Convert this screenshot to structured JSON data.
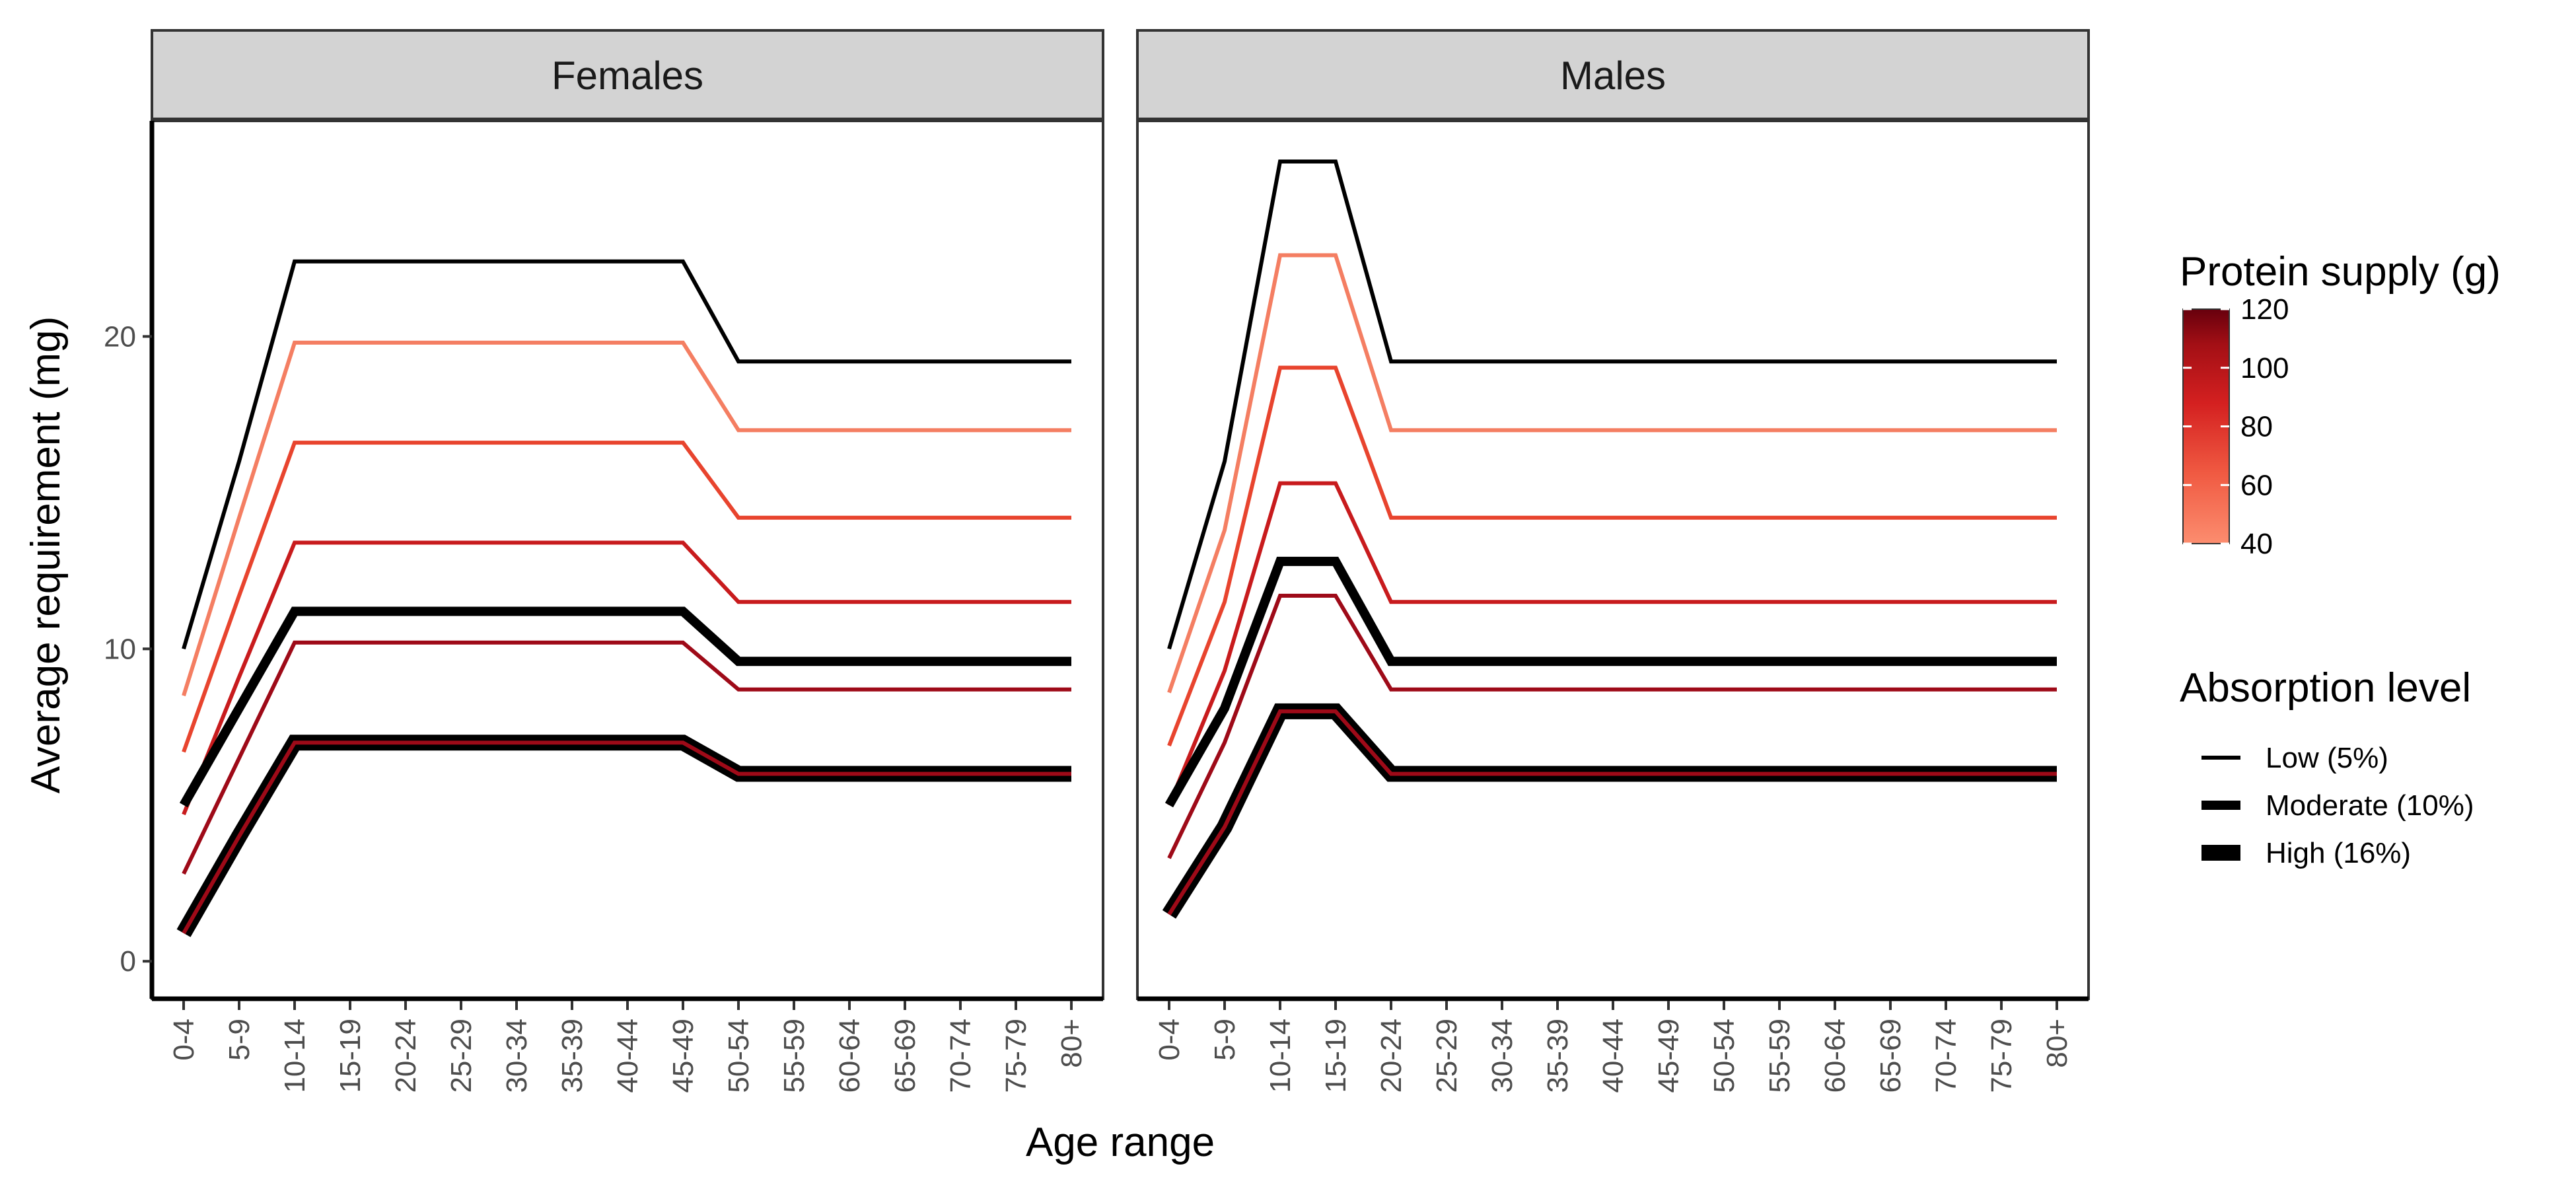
{
  "chart_data": {
    "type": "line",
    "xlabel": "Age range",
    "ylabel": "Average requirement (mg)",
    "categories": [
      "0-4",
      "5-9",
      "10-14",
      "15-19",
      "20-24",
      "25-29",
      "30-34",
      "35-39",
      "40-44",
      "45-49",
      "50-54",
      "55-59",
      "60-64",
      "65-69",
      "70-74",
      "75-79",
      "80+"
    ],
    "ylim": [
      -1.2,
      26.9
    ],
    "yticks": [
      0,
      10,
      20
    ],
    "grid": false,
    "legend_position": "right",
    "color_legend": {
      "title": "Protein supply (g)",
      "range": [
        40,
        120
      ],
      "ticks": [
        40,
        60,
        80,
        100,
        120
      ],
      "low_color": "#fc8d6f",
      "high_color": "#67000d"
    },
    "size_legend": {
      "title": "Absorption level",
      "entries": [
        {
          "label": "Low (5%)",
          "width": 6
        },
        {
          "label": "Moderate (10%)",
          "width": 14
        },
        {
          "label": "High (16%)",
          "width": 24
        }
      ]
    },
    "panels": [
      {
        "label": "Females",
        "series": [
          {
            "color": "#000000",
            "width": 6,
            "values": [
              10,
              16,
              22.4,
              22.4,
              22.4,
              22.4,
              22.4,
              22.4,
              22.4,
              22.4,
              19.2,
              19.2,
              19.2,
              19.2,
              19.2,
              19.2,
              19.2
            ]
          },
          {
            "color": "#f47e62",
            "width": 6,
            "values": [
              8.5,
              14.2,
              19.8,
              19.8,
              19.8,
              19.8,
              19.8,
              19.8,
              19.8,
              19.8,
              17.0,
              17.0,
              17.0,
              17.0,
              17.0,
              17.0,
              17.0
            ]
          },
          {
            "color": "#e8442e",
            "width": 6,
            "values": [
              6.7,
              11.7,
              16.6,
              16.6,
              16.6,
              16.6,
              16.6,
              16.6,
              16.6,
              16.6,
              14.2,
              14.2,
              14.2,
              14.2,
              14.2,
              14.2,
              14.2
            ]
          },
          {
            "color": "#c81b1d",
            "width": 6,
            "values": [
              4.7,
              9.1,
              13.4,
              13.4,
              13.4,
              13.4,
              13.4,
              13.4,
              13.4,
              13.4,
              11.5,
              11.5,
              11.5,
              11.5,
              11.5,
              11.5,
              11.5
            ]
          },
          {
            "color": "#000000",
            "width": 14,
            "values": [
              5.0,
              8.1,
              11.2,
              11.2,
              11.2,
              11.2,
              11.2,
              11.2,
              11.2,
              11.2,
              9.6,
              9.6,
              9.6,
              9.6,
              9.6,
              9.6,
              9.6
            ]
          },
          {
            "color": "#9e0a18",
            "width": 6,
            "values": [
              2.8,
              6.5,
              10.2,
              10.2,
              10.2,
              10.2,
              10.2,
              10.2,
              10.2,
              10.2,
              8.7,
              8.7,
              8.7,
              8.7,
              8.7,
              8.7,
              8.7
            ]
          },
          {
            "color": "#000000",
            "width": 24,
            "values": [
              0.9,
              4.0,
              7.0,
              7.0,
              7.0,
              7.0,
              7.0,
              7.0,
              7.0,
              7.0,
              6.0,
              6.0,
              6.0,
              6.0,
              6.0,
              6.0,
              6.0
            ]
          },
          {
            "color": "#9e0a18",
            "width": 6,
            "values": [
              0.9,
              4.0,
              7.0,
              7.0,
              7.0,
              7.0,
              7.0,
              7.0,
              7.0,
              7.0,
              6.0,
              6.0,
              6.0,
              6.0,
              6.0,
              6.0,
              6.0
            ]
          }
        ]
      },
      {
        "label": "Males",
        "series": [
          {
            "color": "#000000",
            "width": 6,
            "values": [
              10,
              16,
              25.6,
              25.6,
              19.2,
              19.2,
              19.2,
              19.2,
              19.2,
              19.2,
              19.2,
              19.2,
              19.2,
              19.2,
              19.2,
              19.2,
              19.2
            ]
          },
          {
            "color": "#f47e62",
            "width": 6,
            "values": [
              8.6,
              13.8,
              22.6,
              22.6,
              17.0,
              17.0,
              17.0,
              17.0,
              17.0,
              17.0,
              17.0,
              17.0,
              17.0,
              17.0,
              17.0,
              17.0,
              17.0
            ]
          },
          {
            "color": "#e8442e",
            "width": 6,
            "values": [
              6.9,
              11.5,
              19.0,
              19.0,
              14.2,
              14.2,
              14.2,
              14.2,
              14.2,
              14.2,
              14.2,
              14.2,
              14.2,
              14.2,
              14.2,
              14.2,
              14.2
            ]
          },
          {
            "color": "#c81b1d",
            "width": 6,
            "values": [
              5.0,
              9.3,
              15.3,
              15.3,
              11.5,
              11.5,
              11.5,
              11.5,
              11.5,
              11.5,
              11.5,
              11.5,
              11.5,
              11.5,
              11.5,
              11.5,
              11.5
            ]
          },
          {
            "color": "#000000",
            "width": 14,
            "values": [
              5.0,
              8.1,
              12.8,
              12.8,
              9.6,
              9.6,
              9.6,
              9.6,
              9.6,
              9.6,
              9.6,
              9.6,
              9.6,
              9.6,
              9.6,
              9.6,
              9.6
            ]
          },
          {
            "color": "#9e0a18",
            "width": 6,
            "values": [
              3.3,
              7.0,
              11.7,
              11.7,
              8.7,
              8.7,
              8.7,
              8.7,
              8.7,
              8.7,
              8.7,
              8.7,
              8.7,
              8.7,
              8.7,
              8.7,
              8.7
            ]
          },
          {
            "color": "#000000",
            "width": 24,
            "values": [
              1.5,
              4.3,
              8.0,
              8.0,
              6.0,
              6.0,
              6.0,
              6.0,
              6.0,
              6.0,
              6.0,
              6.0,
              6.0,
              6.0,
              6.0,
              6.0,
              6.0
            ]
          },
          {
            "color": "#9e0a18",
            "width": 6,
            "values": [
              1.5,
              4.3,
              8.0,
              8.0,
              6.0,
              6.0,
              6.0,
              6.0,
              6.0,
              6.0,
              6.0,
              6.0,
              6.0,
              6.0,
              6.0,
              6.0,
              6.0
            ]
          }
        ]
      }
    ]
  }
}
